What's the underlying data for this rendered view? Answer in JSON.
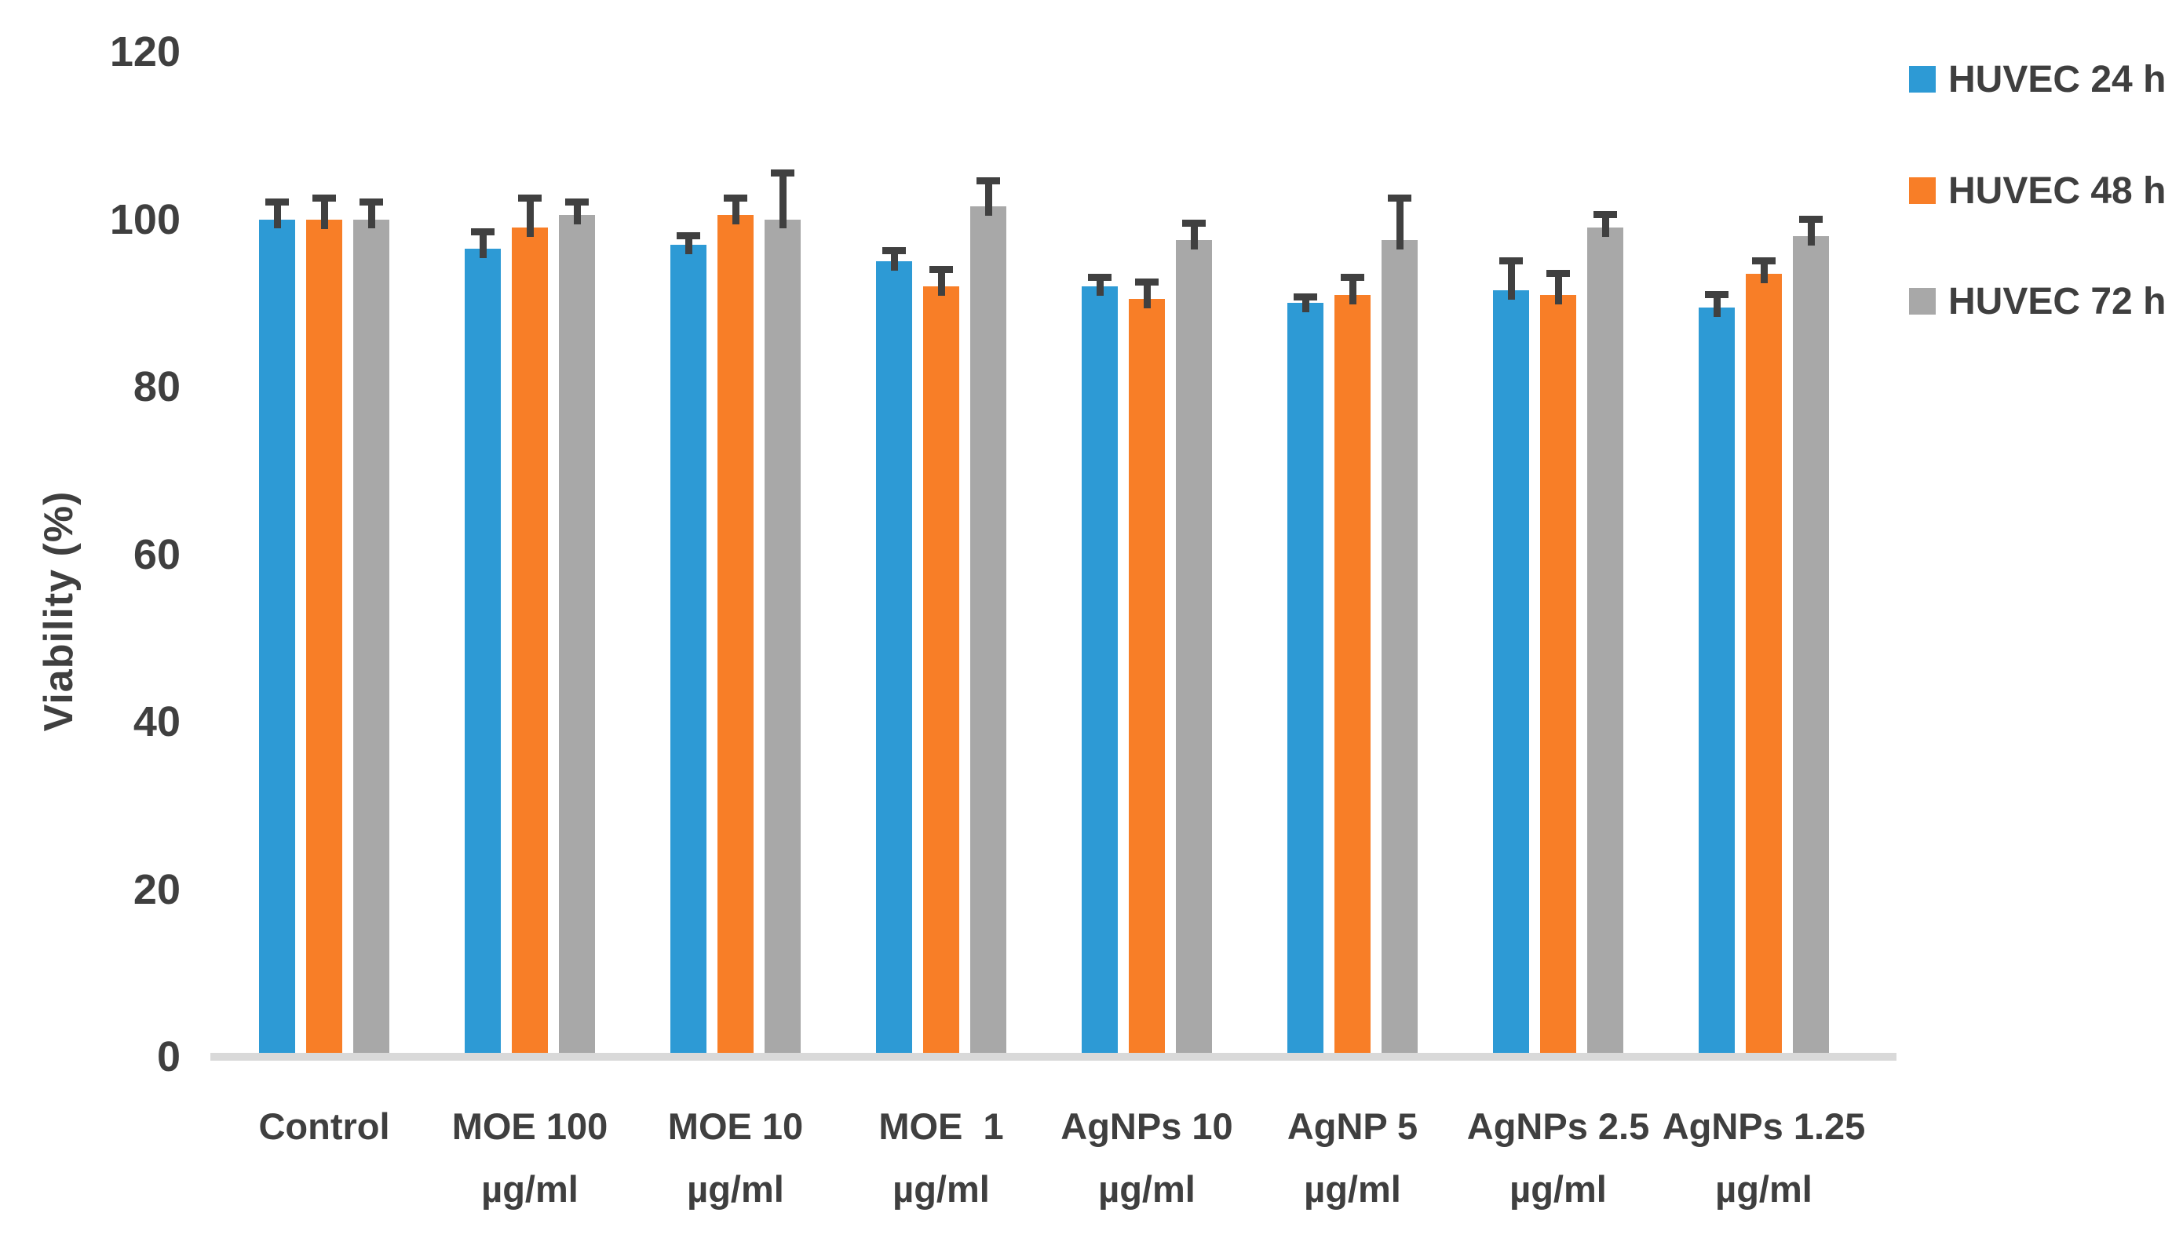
{
  "figure": {
    "background": "#ffffff"
  },
  "colors": {
    "text": "#3F3F3F",
    "error_bar": "#404040",
    "axis_line": "#D9D9D9"
  },
  "chart_data": {
    "type": "bar",
    "title": "",
    "xlabel": "",
    "ylabel": "Viability (%)",
    "ylim": [
      0,
      120
    ],
    "yticks": [
      0,
      20,
      40,
      60,
      80,
      100,
      120
    ],
    "grid": false,
    "legend_position": "top-right",
    "error_bars": "upper",
    "categories": [
      {
        "line1": "Control",
        "line2": ""
      },
      {
        "line1": "MOE 100",
        "line2": "µg/ml"
      },
      {
        "line1": "MOE 10",
        "line2": "µg/ml"
      },
      {
        "line1": "MOE  1",
        "line2": "µg/ml"
      },
      {
        "line1": "AgNPs 10",
        "line2": "µg/ml"
      },
      {
        "line1": "AgNP 5",
        "line2": "µg/ml"
      },
      {
        "line1": "AgNPs 2.5",
        "line2": "µg/ml"
      },
      {
        "line1": "AgNPs 1.25",
        "line2": "µg/ml"
      }
    ],
    "series": [
      {
        "name": "HUVEC 24 h",
        "color": "#2D9AD5",
        "values": [
          100,
          96.5,
          97,
          95,
          92,
          90,
          91.5,
          89.5
        ],
        "errors": [
          2,
          2,
          1,
          1.2,
          1,
          0.7,
          3.5,
          1.5
        ]
      },
      {
        "name": "HUVEC 48 h",
        "color": "#F87E27",
        "values": [
          100,
          99,
          100.5,
          92,
          90.5,
          91,
          91,
          93.5
        ],
        "errors": [
          2.5,
          3.5,
          2,
          2,
          2,
          2,
          2.5,
          1.5
        ]
      },
      {
        "name": "HUVEC 72 h",
        "color": "#A8A8A8",
        "values": [
          100,
          100.5,
          100,
          101.5,
          97.5,
          97.5,
          99,
          98
        ],
        "errors": [
          2,
          1.5,
          5.5,
          3,
          2,
          5,
          1.5,
          2
        ]
      }
    ]
  }
}
